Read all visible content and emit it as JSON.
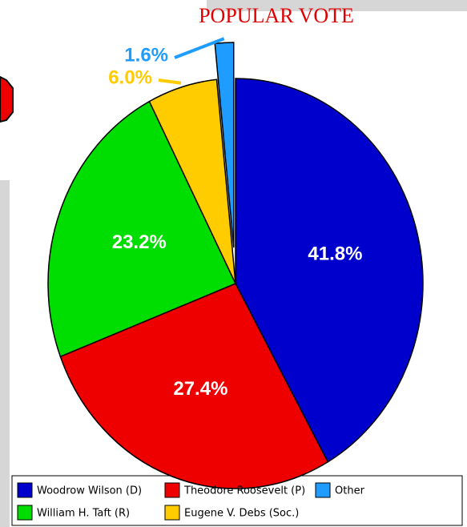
{
  "chart_data": {
    "type": "pie",
    "title": "POPULAR VOTE",
    "categories": [
      "Woodrow Wilson (D)",
      "Theodore Roosevelt (P)",
      "William H. Taft (R)",
      "Eugene V. Debs (Soc.)",
      "Other"
    ],
    "values": [
      41.8,
      27.4,
      23.2,
      6.0,
      1.6
    ],
    "value_labels": [
      "41.8%",
      "27.4%",
      "23.2%",
      "6.0%",
      "1.6%"
    ],
    "colors": [
      "#0000cc",
      "#ee0000",
      "#00dd00",
      "#ffcc00",
      "#1e9cff"
    ],
    "legend": "bottom"
  }
}
